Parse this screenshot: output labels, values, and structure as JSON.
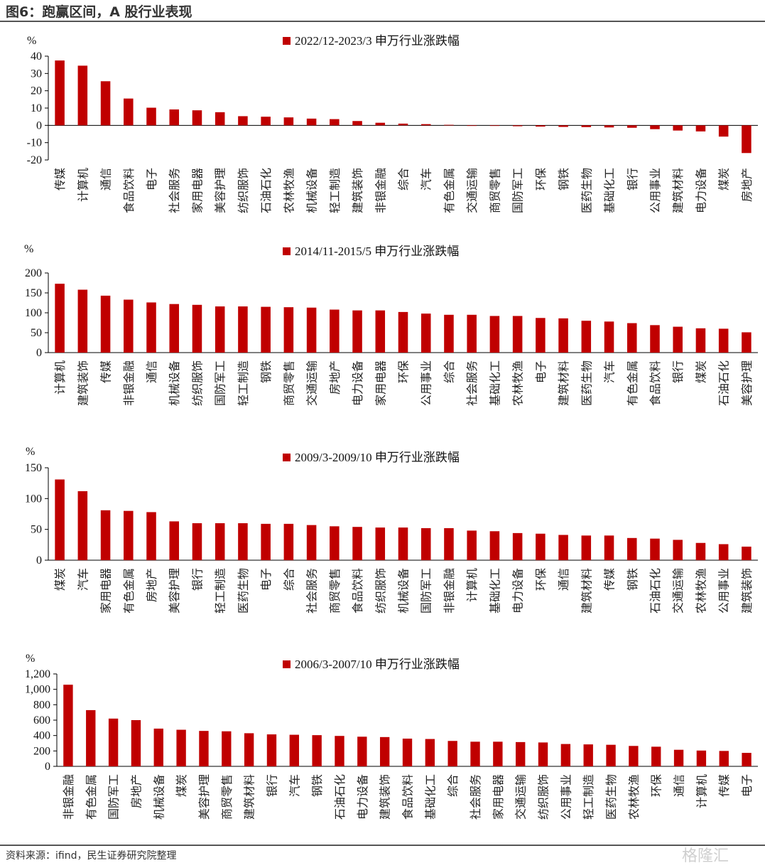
{
  "header": {
    "title": "图6：跑赢区间，A 股行业表现"
  },
  "footer": {
    "source": "资料来源：ifind，民生证券研究院整理",
    "watermark": "格隆汇"
  },
  "colors": {
    "bar": "#C00000",
    "axis": "#000000"
  },
  "chart_data": [
    {
      "type": "bar",
      "title": "2022/12-2023/3 申万行业涨跌幅",
      "ylabel": "%",
      "ylim": [
        -20,
        40
      ],
      "yticks": [
        -20,
        -10,
        0,
        10,
        20,
        30,
        40
      ],
      "ytick_labels": [
        "-20",
        "-10",
        "0",
        "10",
        "20",
        "30",
        "40"
      ],
      "categories": [
        "传媒",
        "计算机",
        "通信",
        "食品饮料",
        "电子",
        "社会服务",
        "家用电器",
        "美容护理",
        "纺织服饰",
        "石油石化",
        "农林牧渔",
        "机械设备",
        "轻工制造",
        "建筑装饰",
        "非银金融",
        "综合",
        "汽车",
        "有色金属",
        "交通运输",
        "商贸零售",
        "国防军工",
        "环保",
        "钢铁",
        "医药生物",
        "基础化工",
        "银行",
        "公用事业",
        "建筑材料",
        "电力设备",
        "煤炭",
        "房地产"
      ],
      "values": [
        37.5,
        34.5,
        25.5,
        15.5,
        10.2,
        9.2,
        8.7,
        7.6,
        5.3,
        5.0,
        4.6,
        3.9,
        3.6,
        2.5,
        1.5,
        1.0,
        0.7,
        0.3,
        0,
        -0.3,
        -0.5,
        -0.7,
        -0.9,
        -1.0,
        -1.2,
        -1.4,
        -2.2,
        -3.0,
        -3.5,
        -6.5,
        -16.0
      ]
    },
    {
      "type": "bar",
      "title": "2014/11-2015/5 申万行业涨跌幅",
      "ylabel": "%",
      "ylim": [
        0,
        200
      ],
      "yticks": [
        0,
        50,
        100,
        150,
        200
      ],
      "ytick_labels": [
        "0",
        "50",
        "100",
        "150",
        "200"
      ],
      "categories": [
        "计算机",
        "建筑装饰",
        "传媒",
        "非银金融",
        "通信",
        "机械设备",
        "纺织服饰",
        "国防军工",
        "轻工制造",
        "钢铁",
        "商贸零售",
        "交通运输",
        "房地产",
        "电力设备",
        "家用电器",
        "环保",
        "公用事业",
        "综合",
        "社会服务",
        "基础化工",
        "农林牧渔",
        "电子",
        "建筑材料",
        "医药生物",
        "汽车",
        "有色金属",
        "食品饮料",
        "银行",
        "煤炭",
        "石油石化",
        "美容护理"
      ],
      "values": [
        173,
        158,
        143,
        133,
        126,
        122,
        120,
        116,
        116,
        115,
        114,
        113,
        108,
        106,
        106,
        102,
        98,
        95,
        95,
        92,
        92,
        87,
        86,
        80,
        78,
        74,
        69,
        65,
        61,
        60,
        51
      ]
    },
    {
      "type": "bar",
      "title": "2009/3-2009/10 申万行业涨跌幅",
      "ylabel": "%",
      "ylim": [
        0,
        150
      ],
      "yticks": [
        0,
        50,
        100,
        150
      ],
      "ytick_labels": [
        "0",
        "50",
        "100",
        "150"
      ],
      "categories": [
        "煤炭",
        "汽车",
        "家用电器",
        "有色金属",
        "房地产",
        "美容护理",
        "银行",
        "轻工制造",
        "医药生物",
        "电子",
        "综合",
        "社会服务",
        "商贸零售",
        "食品饮料",
        "纺织服饰",
        "机械设备",
        "国防军工",
        "非银金融",
        "计算机",
        "基础化工",
        "电力设备",
        "环保",
        "通信",
        "建筑材料",
        "传媒",
        "钢铁",
        "石油石化",
        "交通运输",
        "农林牧渔",
        "公用事业",
        "建筑装饰"
      ],
      "values": [
        131,
        112,
        81,
        80,
        78,
        63,
        60,
        60,
        60,
        59,
        59,
        57,
        55,
        54,
        53,
        53,
        52,
        52,
        48,
        47,
        44,
        43,
        41,
        40,
        40,
        36,
        35,
        33,
        28,
        26,
        22
      ]
    },
    {
      "type": "bar",
      "title": "2006/3-2007/10 申万行业涨跌幅",
      "ylabel": "%",
      "ylim": [
        0,
        1200
      ],
      "yticks": [
        0,
        200,
        400,
        600,
        800,
        1000,
        1200
      ],
      "ytick_labels": [
        "0",
        "200",
        "400",
        "600",
        "800",
        "1,000",
        "1,200"
      ],
      "categories": [
        "非银金融",
        "有色金属",
        "国防军工",
        "房地产",
        "机械设备",
        "煤炭",
        "美容护理",
        "商贸零售",
        "建筑材料",
        "银行",
        "汽车",
        "钢铁",
        "石油石化",
        "电力设备",
        "建筑装饰",
        "食品饮料",
        "基础化工",
        "综合",
        "社会服务",
        "家用电器",
        "交通运输",
        "纺织服饰",
        "公用事业",
        "轻工制造",
        "医药生物",
        "农林牧渔",
        "环保",
        "通信",
        "计算机",
        "传媒",
        "电子"
      ],
      "values": [
        1060,
        730,
        620,
        600,
        490,
        475,
        460,
        455,
        430,
        415,
        410,
        405,
        395,
        385,
        380,
        360,
        355,
        330,
        320,
        320,
        315,
        310,
        290,
        285,
        280,
        265,
        255,
        215,
        205,
        200,
        175
      ]
    }
  ]
}
